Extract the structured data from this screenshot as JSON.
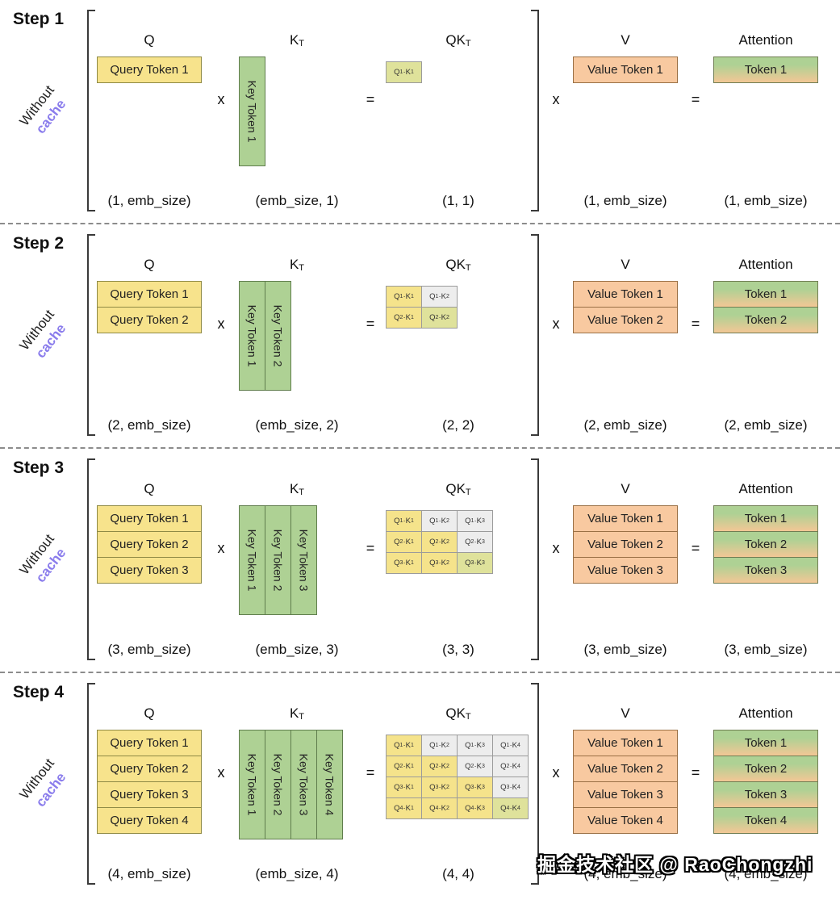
{
  "watermark": "掘金技术社区 @ RaoChongzhi",
  "colors": {
    "q-fill": "#f7e38c",
    "q-border": "#8f8a45",
    "k-fill": "#aed194",
    "k-border": "#5f7d4c",
    "v-fill": "#f8c9a0",
    "v-border": "#9a7045",
    "attn-top": "#aed194",
    "attn-bottom": "#f3c795",
    "attn-border": "#6f7d52",
    "cell-act": "#f5e38b",
    "cell-diag": "#dfe29b",
    "cell-off": "#ededed",
    "cell-border": "#9b9b9b",
    "cache-text": "#8a7cec"
  },
  "operators": {
    "mul": "x",
    "eq": "="
  },
  "steps": [
    {
      "label": "Step 1",
      "side": {
        "line1": "Without",
        "line2": "cache"
      },
      "q": {
        "header": {
          "base": "Q",
          "sup": ""
        },
        "tokens": [
          "Query Token 1"
        ],
        "dims": "(1, emb_size)"
      },
      "k": {
        "header": {
          "base": "K",
          "sup": "T"
        },
        "tokens": [
          "Key Token 1"
        ],
        "dims": "(emb_size, 1)"
      },
      "qk": {
        "header": {
          "base": "QK",
          "sup": "T"
        },
        "dims": "(1, 1)",
        "cells": [
          [
            {
              "label": "Q1·K1",
              "state": "diag"
            }
          ]
        ]
      },
      "v": {
        "header": {
          "base": "V",
          "sup": ""
        },
        "tokens": [
          "Value Token 1"
        ],
        "dims": "(1, emb_size)"
      },
      "attn": {
        "header": {
          "base": "Attention",
          "sup": ""
        },
        "tokens": [
          "Token 1"
        ],
        "dims": "(1, emb_size)"
      }
    },
    {
      "label": "Step 2",
      "side": {
        "line1": "Without",
        "line2": "cache"
      },
      "q": {
        "header": {
          "base": "Q",
          "sup": ""
        },
        "tokens": [
          "Query Token 1",
          "Query Token 2"
        ],
        "dims": "(2, emb_size)"
      },
      "k": {
        "header": {
          "base": "K",
          "sup": "T"
        },
        "tokens": [
          "Key Token 1",
          "Key Token 2"
        ],
        "dims": "(emb_size, 2)"
      },
      "qk": {
        "header": {
          "base": "QK",
          "sup": "T"
        },
        "dims": "(2, 2)",
        "cells": [
          [
            {
              "label": "Q1·K1",
              "state": "act"
            },
            {
              "label": "Q1·K2",
              "state": "off"
            }
          ],
          [
            {
              "label": "Q2·K1",
              "state": "act"
            },
            {
              "label": "Q2·K2",
              "state": "diag"
            }
          ]
        ]
      },
      "v": {
        "header": {
          "base": "V",
          "sup": ""
        },
        "tokens": [
          "Value Token 1",
          "Value Token 2"
        ],
        "dims": "(2, emb_size)"
      },
      "attn": {
        "header": {
          "base": "Attention",
          "sup": ""
        },
        "tokens": [
          "Token 1",
          "Token 2"
        ],
        "dims": "(2, emb_size)"
      }
    },
    {
      "label": "Step 3",
      "side": {
        "line1": "Without",
        "line2": "cache"
      },
      "q": {
        "header": {
          "base": "Q",
          "sup": ""
        },
        "tokens": [
          "Query Token 1",
          "Query Token 2",
          "Query Token 3"
        ],
        "dims": "(3, emb_size)"
      },
      "k": {
        "header": {
          "base": "K",
          "sup": "T"
        },
        "tokens": [
          "Key Token 1",
          "Key Token 2",
          "Key Token 3"
        ],
        "dims": "(emb_size, 3)"
      },
      "qk": {
        "header": {
          "base": "QK",
          "sup": "T"
        },
        "dims": "(3, 3)",
        "cells": [
          [
            {
              "label": "Q1·K1",
              "state": "act"
            },
            {
              "label": "Q1·K2",
              "state": "off"
            },
            {
              "label": "Q1·K3",
              "state": "off"
            }
          ],
          [
            {
              "label": "Q2·K1",
              "state": "act"
            },
            {
              "label": "Q2·K2",
              "state": "act"
            },
            {
              "label": "Q2·K3",
              "state": "off"
            }
          ],
          [
            {
              "label": "Q3·K1",
              "state": "act"
            },
            {
              "label": "Q3·K2",
              "state": "act"
            },
            {
              "label": "Q3·K3",
              "state": "diag"
            }
          ]
        ]
      },
      "v": {
        "header": {
          "base": "V",
          "sup": ""
        },
        "tokens": [
          "Value Token 1",
          "Value Token 2",
          "Value Token 3"
        ],
        "dims": "(3, emb_size)"
      },
      "attn": {
        "header": {
          "base": "Attention",
          "sup": ""
        },
        "tokens": [
          "Token 1",
          "Token 2",
          "Token 3"
        ],
        "dims": "(3, emb_size)"
      }
    },
    {
      "label": "Step 4",
      "side": {
        "line1": "Without",
        "line2": "cache"
      },
      "q": {
        "header": {
          "base": "Q",
          "sup": ""
        },
        "tokens": [
          "Query Token 1",
          "Query Token 2",
          "Query Token 3",
          "Query Token 4"
        ],
        "dims": "(4, emb_size)"
      },
      "k": {
        "header": {
          "base": "K",
          "sup": "T"
        },
        "tokens": [
          "Key Token 1",
          "Key Token 2",
          "Key Token 3",
          "Key Token 4"
        ],
        "dims": "(emb_size, 4)"
      },
      "qk": {
        "header": {
          "base": "QK",
          "sup": "T"
        },
        "dims": "(4, 4)",
        "cells": [
          [
            {
              "label": "Q1·K1",
              "state": "act"
            },
            {
              "label": "Q1·K2",
              "state": "off"
            },
            {
              "label": "Q1·K3",
              "state": "off"
            },
            {
              "label": "Q1·K4",
              "state": "off"
            }
          ],
          [
            {
              "label": "Q2·K1",
              "state": "act"
            },
            {
              "label": "Q2·K2",
              "state": "act"
            },
            {
              "label": "Q2·K3",
              "state": "off"
            },
            {
              "label": "Q2·K4",
              "state": "off"
            }
          ],
          [
            {
              "label": "Q3·K1",
              "state": "act"
            },
            {
              "label": "Q3·K2",
              "state": "act"
            },
            {
              "label": "Q3·K3",
              "state": "act"
            },
            {
              "label": "Q3·K4",
              "state": "off"
            }
          ],
          [
            {
              "label": "Q4·K1",
              "state": "act"
            },
            {
              "label": "Q4·K2",
              "state": "act"
            },
            {
              "label": "Q4·K3",
              "state": "act"
            },
            {
              "label": "Q4·K4",
              "state": "diag"
            }
          ]
        ]
      },
      "v": {
        "header": {
          "base": "V",
          "sup": ""
        },
        "tokens": [
          "Value Token 1",
          "Value Token 2",
          "Value Token 3",
          "Value Token 4"
        ],
        "dims": "(4, emb_size)"
      },
      "attn": {
        "header": {
          "base": "Attention",
          "sup": ""
        },
        "tokens": [
          "Token 1",
          "Token 2",
          "Token 3",
          "Token 4"
        ],
        "dims": "(4, emb_size)"
      }
    }
  ]
}
